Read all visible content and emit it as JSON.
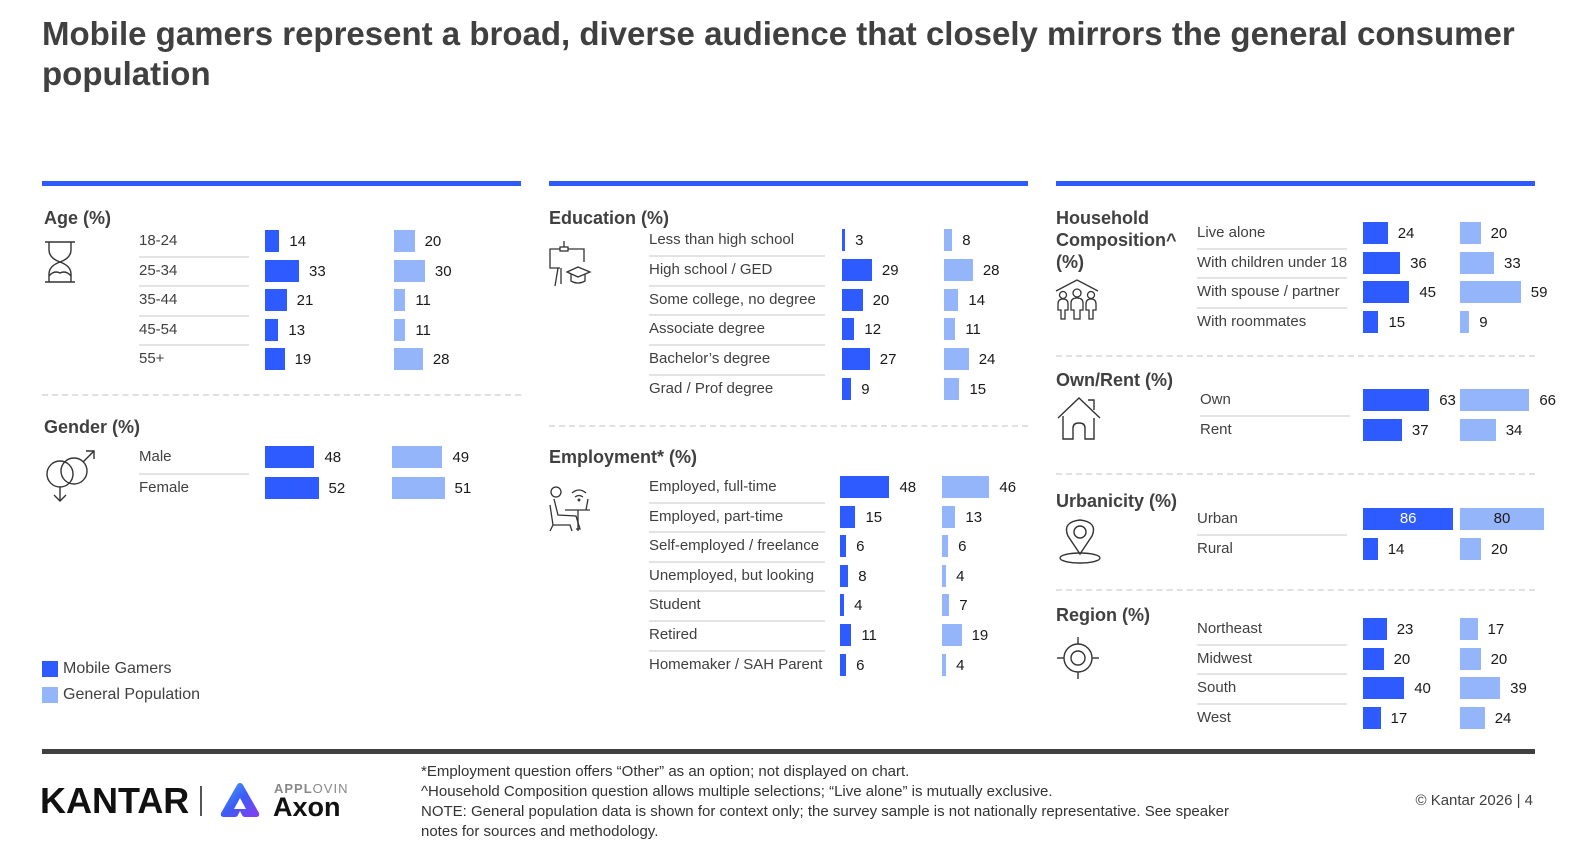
{
  "title": "Mobile gamers represent a broad, diverse audience that closely mirrors the general consumer population",
  "colors": {
    "mobile_gamers": "#2E5BFF",
    "general_population": "#95B5FA",
    "rule": "#2E5BFF"
  },
  "legend": [
    {
      "label": "Mobile Gamers",
      "color": "#2E5BFF"
    },
    {
      "label": "General Population",
      "color": "#95B5FA"
    }
  ],
  "chart_data": [
    {
      "type": "bar",
      "id": "age",
      "title": "Age (%)",
      "icon": "hourglass-icon",
      "categories": [
        "18-24",
        "25-34",
        "35-44",
        "45-54",
        "55+"
      ],
      "series": [
        {
          "name": "Mobile Gamers",
          "values": [
            14,
            33,
            21,
            13,
            19
          ]
        },
        {
          "name": "General Population",
          "values": [
            20,
            30,
            11,
            11,
            28
          ]
        }
      ]
    },
    {
      "type": "bar",
      "id": "gender",
      "title": "Gender (%)",
      "icon": "gender-icon",
      "categories": [
        "Male",
        "Female"
      ],
      "series": [
        {
          "name": "Mobile Gamers",
          "values": [
            48,
            52
          ]
        },
        {
          "name": "General Population",
          "values": [
            49,
            51
          ]
        }
      ]
    },
    {
      "type": "bar",
      "id": "education",
      "title": "Education (%)",
      "icon": "education-icon",
      "categories": [
        "Less than high school",
        "High school / GED",
        "Some college, no degree",
        "Associate degree",
        "Bachelor’s degree",
        "Grad / Prof degree"
      ],
      "series": [
        {
          "name": "Mobile Gamers",
          "values": [
            3,
            29,
            20,
            12,
            27,
            9
          ]
        },
        {
          "name": "General Population",
          "values": [
            8,
            28,
            14,
            11,
            24,
            15
          ]
        }
      ]
    },
    {
      "type": "bar",
      "id": "employment",
      "title": "Employment* (%)",
      "icon": "remote-worker-icon",
      "categories": [
        "Employed, full-time",
        "Employed, part-time",
        "Self-employed / freelance",
        "Unemployed, but looking",
        "Student",
        "Retired",
        "Homemaker / SAH Parent"
      ],
      "series": [
        {
          "name": "Mobile Gamers",
          "values": [
            48,
            15,
            6,
            8,
            4,
            11,
            6
          ]
        },
        {
          "name": "General Population",
          "values": [
            46,
            13,
            6,
            4,
            7,
            19,
            4
          ]
        }
      ]
    },
    {
      "type": "bar",
      "id": "household",
      "title": "Household Composition^ (%)",
      "icon": "family-house-icon",
      "categories": [
        "Live alone",
        "With children under 18",
        "With spouse / partner",
        "With roommates"
      ],
      "series": [
        {
          "name": "Mobile Gamers",
          "values": [
            24,
            36,
            45,
            15
          ]
        },
        {
          "name": "General Population",
          "values": [
            20,
            33,
            59,
            9
          ]
        }
      ]
    },
    {
      "type": "bar",
      "id": "ownrent",
      "title": "Own/Rent (%)",
      "icon": "house-icon",
      "categories": [
        "Own",
        "Rent"
      ],
      "series": [
        {
          "name": "Mobile Gamers",
          "values": [
            63,
            37
          ]
        },
        {
          "name": "General Population",
          "values": [
            66,
            34
          ]
        }
      ]
    },
    {
      "type": "bar",
      "id": "urbanicity",
      "title": "Urbanicity (%)",
      "icon": "location-pin-icon",
      "categories": [
        "Urban",
        "Rural"
      ],
      "series": [
        {
          "name": "Mobile Gamers",
          "values": [
            86,
            14
          ]
        },
        {
          "name": "General Population",
          "values": [
            80,
            20
          ]
        }
      ]
    },
    {
      "type": "bar",
      "id": "region",
      "title": "Region (%)",
      "icon": "compass-target-icon",
      "categories": [
        "Northeast",
        "Midwest",
        "South",
        "West"
      ],
      "series": [
        {
          "name": "Mobile Gamers",
          "values": [
            23,
            20,
            40,
            17
          ]
        },
        {
          "name": "General Population",
          "values": [
            17,
            20,
            39,
            24
          ]
        }
      ]
    }
  ],
  "footer": {
    "notes": [
      "*Employment question offers “Other” as an option; not displayed on chart.",
      "^Household Composition question allows multiple selections; “Live alone” is mutually exclusive.",
      "NOTE: General population data is shown for context only; the survey sample is not nationally representative. See speaker",
      "notes for sources and methodology."
    ],
    "copyright": "© Kantar 2026 | 4",
    "logo_kantar": "KANTAR",
    "logo_applovin_bold": "APPL",
    "logo_applovin_light": "OVIN",
    "logo_axon": "Axon"
  }
}
